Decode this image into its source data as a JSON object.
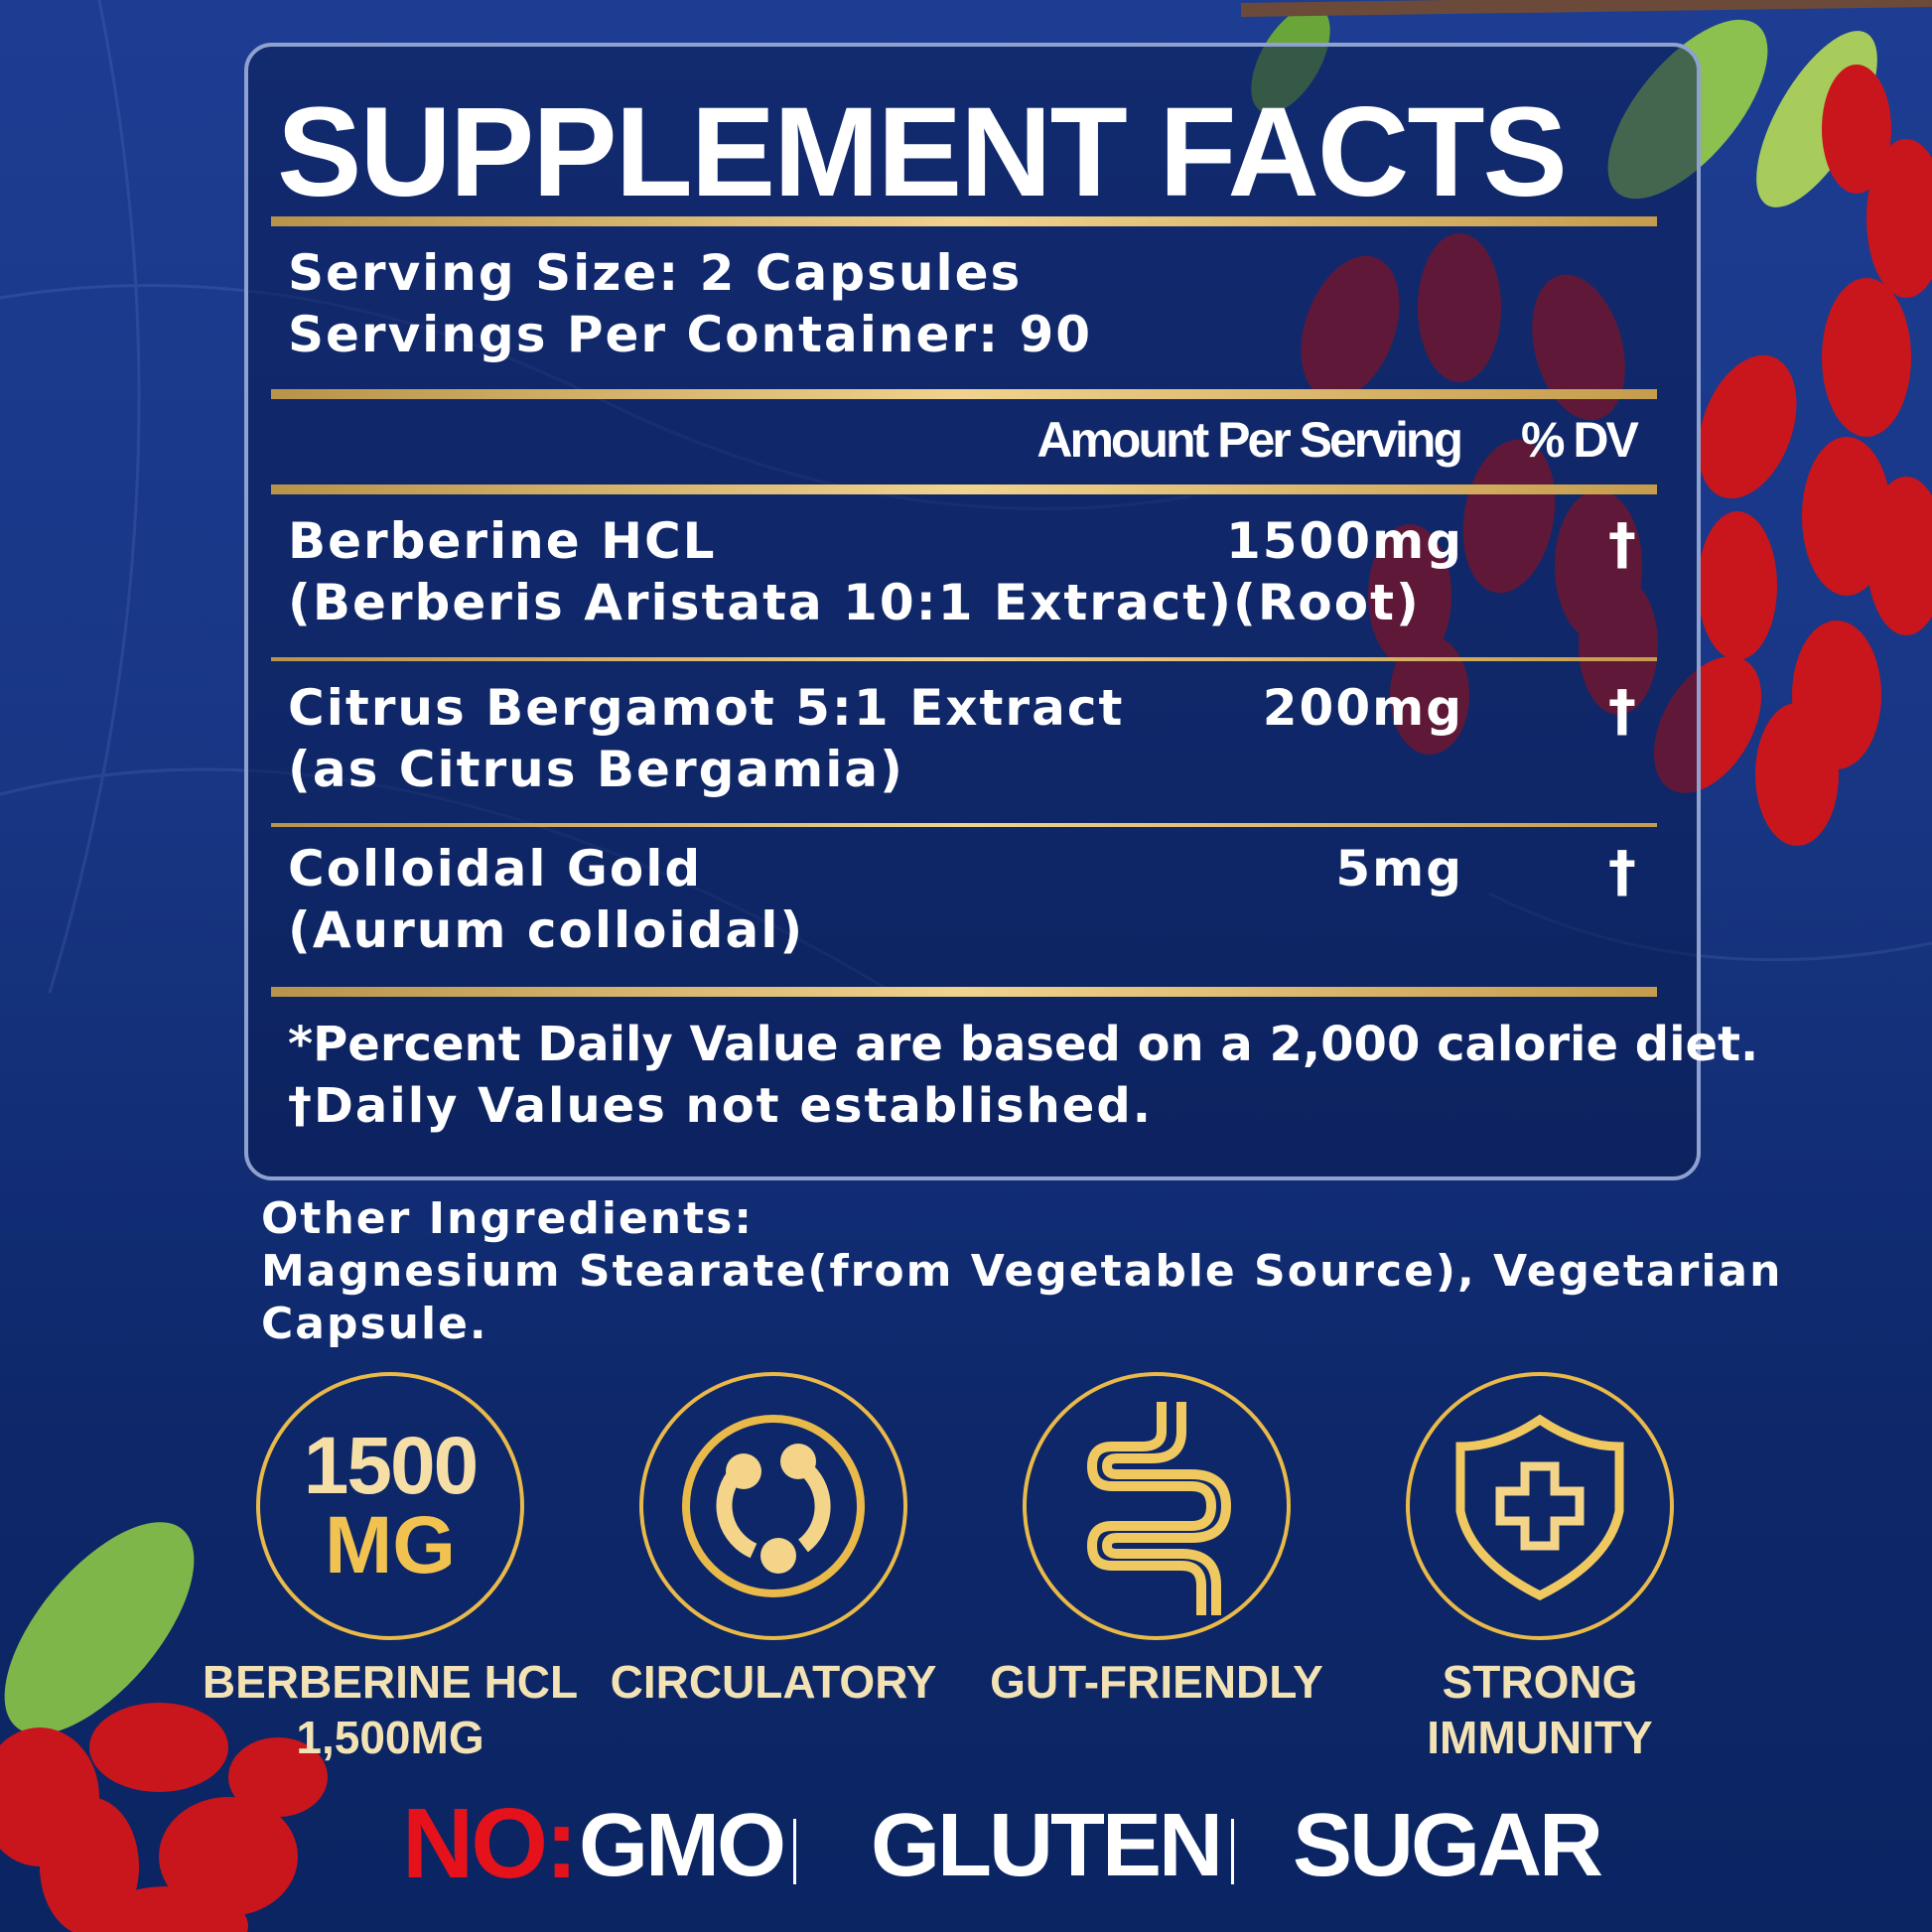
{
  "title": "SUPPLEMENT FACTS",
  "serving_size": "Serving Size: 2 Capsules",
  "servings_per_container": "Servings Per Container: 90",
  "headers": {
    "amount": "Amount Per Serving",
    "dv": "% DV"
  },
  "ingredients": [
    {
      "name": "Berberine HCL",
      "detail": "(Berberis Aristata 10:1 Extract)(Root)",
      "amount": "1500mg",
      "dv": "†"
    },
    {
      "name": "Citrus Bergamot 5:1 Extract",
      "detail": "(as Citrus Bergamia)",
      "amount": "200mg",
      "dv": "†"
    },
    {
      "name": "Colloidal Gold",
      "detail": "(Aurum colloidal)",
      "amount": "5mg",
      "dv": "†"
    }
  ],
  "footnotes": [
    "*Percent Daily Value are based on a 2,000 calorie diet.",
    "†Daily Values not established."
  ],
  "other_ingredients": {
    "heading": "Other Ingredients:",
    "line1": "Magnesium Stearate(from Vegetable Source), Vegetarian",
    "line2": "Capsule."
  },
  "badges": [
    {
      "icon": "1500 mg text",
      "top": "1500",
      "bottom": "MG",
      "label1": "BERBERINE HCL",
      "label2": "1,500MG"
    },
    {
      "icon": "circulatory-icon",
      "label1": "CIRCULATORY",
      "label2": ""
    },
    {
      "icon": "intestine-icon",
      "label1": "GUT-FRIENDLY",
      "label2": ""
    },
    {
      "icon": "shield-cross-icon",
      "label1": "STRONG",
      "label2": "IMMUNITY"
    }
  ],
  "free_from": {
    "prefix": "NO:",
    "items": [
      "GMO",
      "GLUTEN",
      "SUGAR"
    ]
  },
  "colors": {
    "gold": "#e9b949",
    "navy": "#163382",
    "red": "#e5121b"
  }
}
